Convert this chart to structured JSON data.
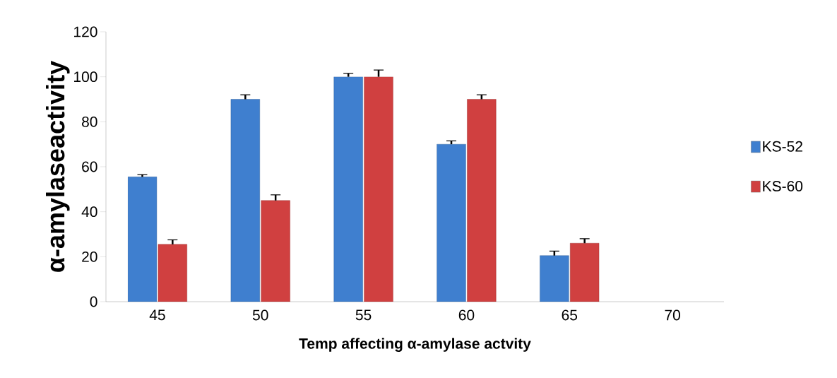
{
  "chart_data": {
    "type": "bar",
    "xlabel": "Temp affecting α-amylase actvity",
    "ylabel": "α-amylaseactivity",
    "categories": [
      "45",
      "50",
      "55",
      "60",
      "65",
      "70"
    ],
    "series": [
      {
        "name": "KS-52",
        "color": "#3f7fcf",
        "values": [
          55.5,
          90,
          100,
          70,
          20.5,
          null
        ],
        "errors": [
          1,
          2,
          1.5,
          1.5,
          2,
          null
        ]
      },
      {
        "name": "KS-60",
        "color": "#d04040",
        "values": [
          25.5,
          45,
          100,
          90,
          26,
          null
        ],
        "errors": [
          2,
          2.5,
          3,
          2,
          2,
          null
        ]
      }
    ],
    "ylim": [
      0,
      120
    ],
    "yticks": [
      0,
      20,
      40,
      60,
      80,
      100,
      120
    ],
    "legend": "right",
    "grid": false
  }
}
